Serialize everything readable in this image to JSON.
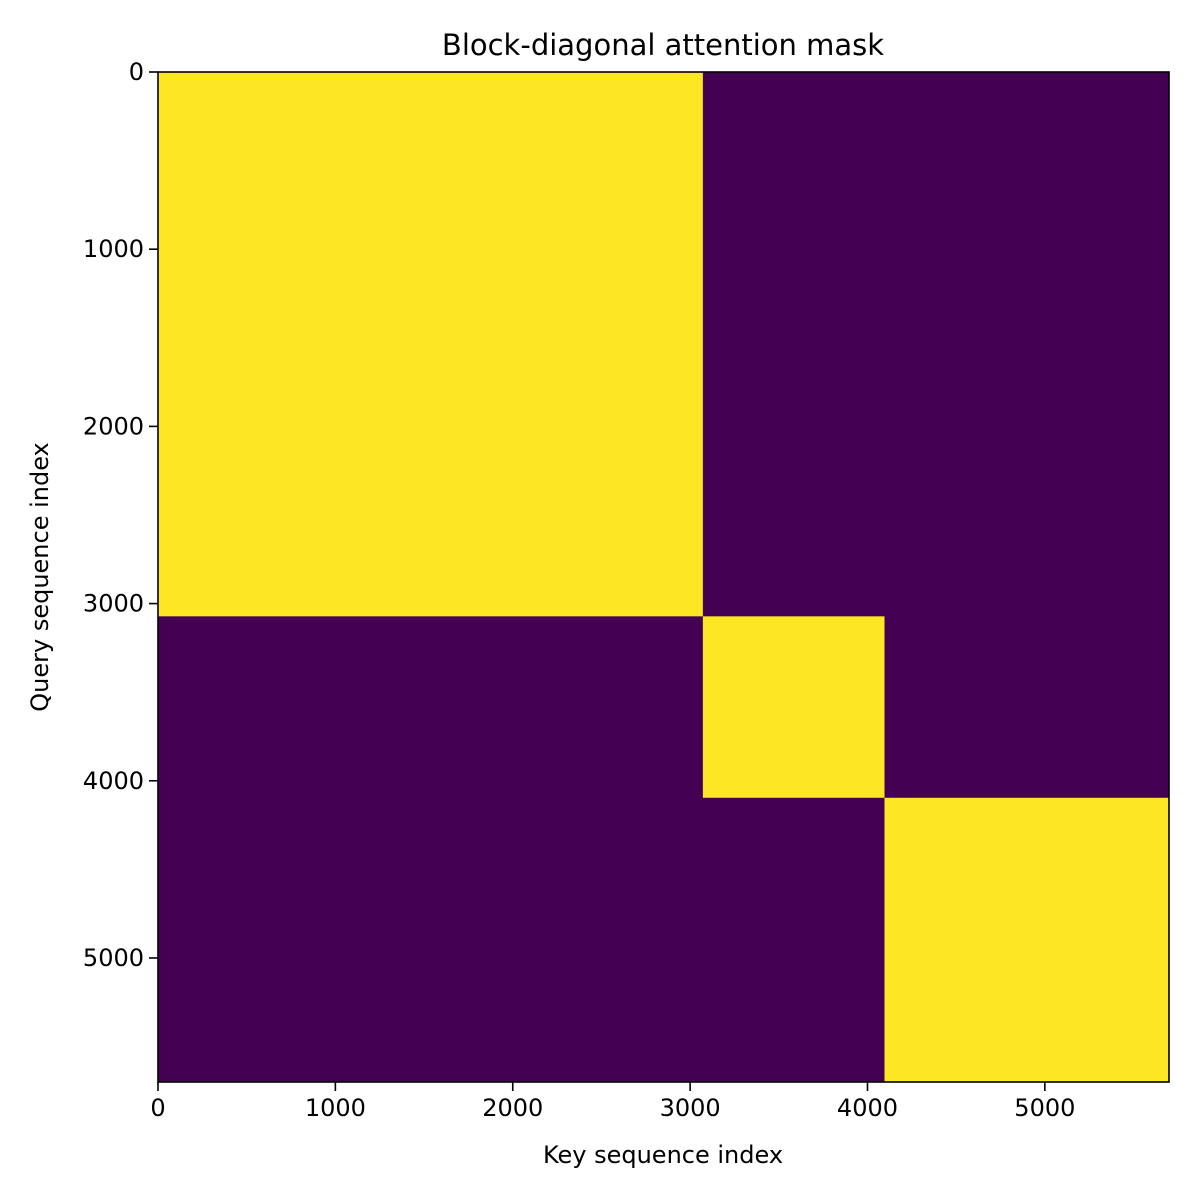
{
  "chart_data": {
    "type": "heatmap",
    "title": "Block-diagonal attention mask",
    "xlabel": "Key sequence index",
    "ylabel": "Query sequence index",
    "xlim": [
      0,
      5700
    ],
    "ylim": [
      5700,
      0
    ],
    "x_ticks": [
      0,
      1000,
      2000,
      3000,
      4000,
      5000
    ],
    "y_ticks": [
      0,
      1000,
      2000,
      3000,
      4000,
      5000
    ],
    "x_tick_labels": [
      "0",
      "1000",
      "2000",
      "3000",
      "4000",
      "5000"
    ],
    "y_tick_labels": [
      "0",
      "1000",
      "2000",
      "3000",
      "4000",
      "5000"
    ],
    "colormap": "viridis",
    "colors": {
      "masked": "#440154",
      "attend": "#fde725"
    },
    "background_value": 0,
    "blocks": [
      {
        "start": 0,
        "end": 3072,
        "value": 1
      },
      {
        "start": 3072,
        "end": 4096,
        "value": 1
      },
      {
        "start": 4096,
        "end": 5700,
        "value": 1
      }
    ],
    "grid": false,
    "legend": "none"
  }
}
